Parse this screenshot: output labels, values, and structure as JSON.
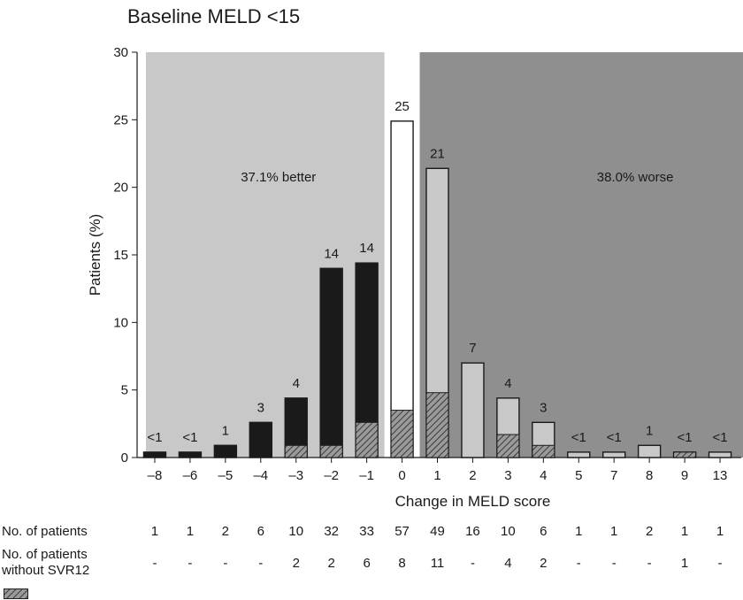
{
  "chart_data": {
    "type": "bar",
    "title": "Baseline MELD <15",
    "xlabel": "Change in MELD score",
    "ylabel": "Patients (%)",
    "ylim": [
      0,
      30
    ],
    "yticks": [
      "0",
      "5",
      "10",
      "15",
      "20",
      "25",
      "30"
    ],
    "categories": [
      "–8",
      "–6",
      "–5",
      "–4",
      "–3",
      "–2",
      "–1",
      "0",
      "1",
      "2",
      "3",
      "4",
      "5",
      "7",
      "8",
      "9",
      "13"
    ],
    "series": [
      {
        "values": [
          0.4,
          0.4,
          0.9,
          2.6,
          4.4,
          14.0,
          14.4,
          24.9,
          21.4,
          7.0,
          4.4,
          2.6,
          0.4,
          0.4,
          0.9,
          0.4,
          0.4
        ]
      },
      {
        "values": [
          0,
          0,
          0,
          0,
          0.9,
          0.9,
          2.6,
          3.5,
          4.8,
          0,
          1.7,
          0.9,
          0,
          0,
          0,
          0.4,
          0
        ]
      }
    ],
    "bar_labels": [
      "<1",
      "<1",
      "1",
      "3",
      "4",
      "14",
      "14",
      "25",
      "21",
      "7",
      "4",
      "3",
      "<1",
      "<1",
      "1",
      "<1",
      "<1"
    ],
    "bar_groups": [
      "better",
      "better",
      "better",
      "better",
      "better",
      "better",
      "better",
      "same",
      "worse",
      "worse",
      "worse",
      "worse",
      "worse",
      "worse",
      "worse",
      "worse",
      "worse"
    ],
    "regions": {
      "better_label": "37.1% better",
      "worse_label": "38.0% worse"
    },
    "colors": {
      "better_bar": "#1a1a1a",
      "same_bar": "#ffffff",
      "worse_bar": "#c8c8c8",
      "better_region": "#c8c8c8",
      "worse_region": "#8f8f8f",
      "hatch": "#5a5a5a"
    }
  },
  "table": {
    "row1_label": "No. of patients",
    "row1_values": [
      "1",
      "1",
      "2",
      "6",
      "10",
      "32",
      "33",
      "57",
      "49",
      "16",
      "10",
      "6",
      "1",
      "1",
      "2",
      "1",
      "1"
    ],
    "row2_label_line1": "No. of patients",
    "row2_label_line2": "without SVR12",
    "row2_values": [
      "-",
      "-",
      "-",
      "-",
      "2",
      "2",
      "6",
      "8",
      "11",
      "-",
      "4",
      "2",
      "-",
      "-",
      "-",
      "1",
      "-"
    ],
    "legend_icon": "hatched-swatch-icon"
  }
}
